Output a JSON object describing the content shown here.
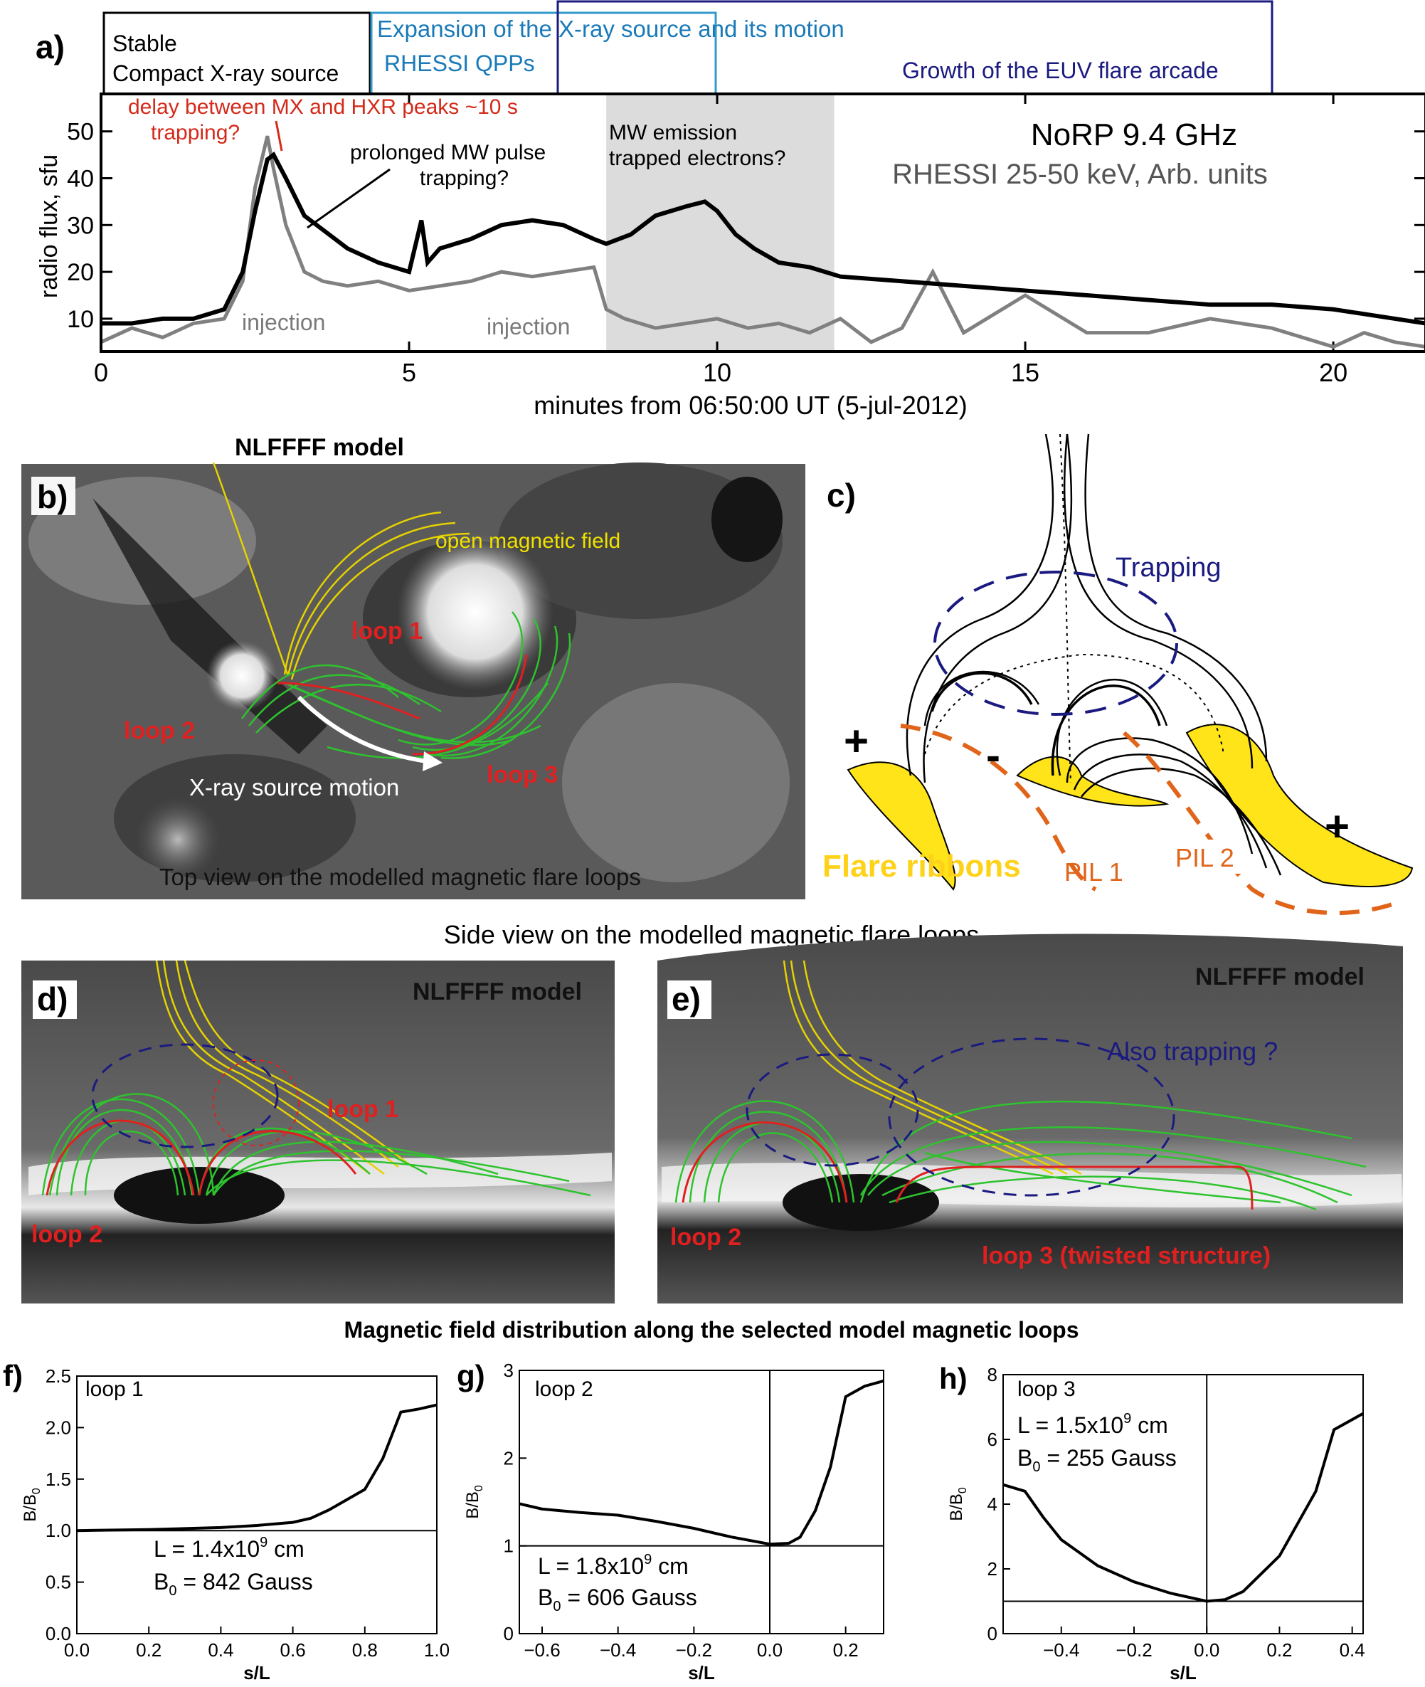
{
  "figure": {
    "panel_labels": {
      "a": "a)",
      "b": "b)",
      "c": "c)",
      "d": "d)",
      "e": "e)",
      "f": "f)",
      "g": "g)",
      "h": "h)"
    },
    "header": {
      "stable_1": "Stable",
      "stable_2": "Compact X-ray source",
      "expansion": "Expansion of the X-ray source and its motion",
      "qpp": "RHESSI QPPs",
      "growth": "Growth of the EUV flare arcade"
    },
    "nlfff_b": "NLFFFF model",
    "side_view_title": "Side view on the modelled magnetic flare loops",
    "bottom_title": "Magnetic field distribution along the selected model magnetic loops"
  },
  "panel_a": {
    "annotations": {
      "delay": "delay between MX and HXR peaks ~10 s",
      "trapping1": "trapping?",
      "prolonged_1": "prolonged MW pulse",
      "prolonged_2": "trapping?",
      "mw_1": "MW emission",
      "mw_2": "trapped electrons?",
      "injection1": "injection",
      "injection2": "injection",
      "legend_1": "NoRP 9.4 GHz",
      "legend_2": "RHESSI 25-50 keV, Arb. units"
    }
  },
  "panel_b": {
    "open_field": "open magnetic field",
    "loop1": "loop 1",
    "loop2": "loop 2",
    "loop3": "loop 3",
    "motion": "X-ray source motion",
    "caption": "Top view on the modelled magnetic flare loops"
  },
  "panel_c": {
    "trapping": "Trapping",
    "plus1": "+",
    "minus": "-",
    "plus2": "+",
    "ribbons": "Flare ribbons",
    "pil1": "PIL 1",
    "pil2": "PIL 2"
  },
  "panel_d": {
    "model": "NLFFFF model",
    "loop1": "loop 1",
    "loop2": "loop 2"
  },
  "panel_e": {
    "model": "NLFFFF model",
    "trapping": "Also trapping ?",
    "loop2": "loop 2",
    "loop3": "loop 3 (twisted structure)"
  },
  "panel_f": {
    "loop": "loop 1",
    "L_text": "L = 1.4x10",
    "L_exp": "9",
    "L_unit": " cm",
    "B0_text": "B",
    "B0_sub": "0",
    "B0_value": " = 842 Gauss"
  },
  "panel_g": {
    "loop": "loop 2",
    "L_text": "L = 1.8x10",
    "L_exp": "9",
    "L_unit": " cm",
    "B0_text": "B",
    "B0_sub": "0",
    "B0_value": " = 606 Gauss"
  },
  "panel_h": {
    "loop": "loop 3",
    "L_text": "L = 1.5x10",
    "L_exp": "9",
    "L_unit": " cm",
    "B0_text": "B",
    "B0_sub": "0",
    "B0_value": " = 255 Gauss"
  },
  "chart_data": [
    {
      "panel": "a",
      "type": "line",
      "xlabel": "minutes from 06:50:00 UT (5-jul-2012)",
      "ylabel": "radio flux, sfu",
      "xlim": [
        0,
        21.5
      ],
      "ylim": [
        3,
        58
      ],
      "xticks": [
        0,
        5,
        10,
        15,
        20
      ],
      "yticks": [
        10,
        20,
        30,
        40,
        50
      ],
      "shaded_interval": [
        8.2,
        11.9
      ],
      "series": [
        {
          "name": "NoRP 9.4 GHz",
          "color": "#000000",
          "x": [
            0,
            0.5,
            1.0,
            1.5,
            2.0,
            2.3,
            2.5,
            2.7,
            2.8,
            3.0,
            3.3,
            3.6,
            4.0,
            4.5,
            5.0,
            5.2,
            5.3,
            5.5,
            6.0,
            6.5,
            7.0,
            7.5,
            8.0,
            8.2,
            8.6,
            9.0,
            9.5,
            9.8,
            10.0,
            10.3,
            10.6,
            11.0,
            11.5,
            12.0,
            13.0,
            14.0,
            15.0,
            16.0,
            17.0,
            18.0,
            19.0,
            20.0,
            20.5,
            21.0,
            21.5
          ],
          "y": [
            9,
            9,
            10,
            10,
            12,
            20,
            33,
            44,
            45,
            40,
            32,
            29,
            25,
            22,
            20,
            31,
            22,
            25,
            27,
            30,
            31,
            30,
            27,
            26,
            28,
            32,
            34,
            35,
            33,
            28,
            25,
            22,
            21,
            19,
            18,
            17,
            16,
            15,
            14,
            13,
            13,
            12,
            11,
            10,
            9
          ]
        },
        {
          "name": "RHESSI 25-50 keV, Arb. units",
          "color": "#808080",
          "x": [
            0,
            0.5,
            1.0,
            1.5,
            2.0,
            2.3,
            2.5,
            2.7,
            2.8,
            3.0,
            3.3,
            3.6,
            4.0,
            4.5,
            5.0,
            5.5,
            6.0,
            6.5,
            7.0,
            7.5,
            8.0,
            8.2,
            8.5,
            9.0,
            9.5,
            10.0,
            10.5,
            11.0,
            11.5,
            12.0,
            12.5,
            13.0,
            13.5,
            14.0,
            15.0,
            16.0,
            17.0,
            18.0,
            19.0,
            20.0,
            20.5,
            21.0,
            21.5
          ],
          "y": [
            5,
            8,
            6,
            9,
            10,
            18,
            38,
            49,
            42,
            30,
            20,
            18,
            17,
            18,
            16,
            17,
            18,
            20,
            19,
            20,
            21,
            12,
            10,
            8,
            9,
            10,
            8,
            9,
            7,
            10,
            5,
            8,
            20,
            7,
            15,
            7,
            7,
            10,
            8,
            4,
            7,
            5,
            4
          ]
        }
      ]
    },
    {
      "panel": "f",
      "type": "line",
      "xlabel": "s/L",
      "ylabel": "B/B0",
      "xlim": [
        0,
        1.0
      ],
      "ylim": [
        0,
        2.5
      ],
      "reference_y": 1.0,
      "xticks": [
        0.0,
        0.2,
        0.4,
        0.6,
        0.8,
        1.0
      ],
      "yticks": [
        0.0,
        0.5,
        1.0,
        1.5,
        2.0,
        2.5
      ],
      "series": [
        {
          "name": "loop 1",
          "x": [
            0,
            0.2,
            0.4,
            0.5,
            0.6,
            0.65,
            0.7,
            0.75,
            0.8,
            0.85,
            0.9,
            0.95,
            1.0
          ],
          "y": [
            1.0,
            1.01,
            1.03,
            1.05,
            1.08,
            1.12,
            1.2,
            1.3,
            1.4,
            1.7,
            2.15,
            2.18,
            2.22
          ]
        }
      ]
    },
    {
      "panel": "g",
      "type": "line",
      "xlabel": "s/L",
      "ylabel": "B/B0",
      "xlim": [
        -0.66,
        0.3
      ],
      "ylim": [
        0,
        3
      ],
      "reference_y": 1.0,
      "reference_x": 0.0,
      "xticks": [
        -0.6,
        -0.4,
        -0.2,
        0.0,
        0.2
      ],
      "yticks": [
        0,
        1,
        2,
        3
      ],
      "series": [
        {
          "name": "loop 2",
          "x": [
            -0.66,
            -0.6,
            -0.5,
            -0.4,
            -0.3,
            -0.2,
            -0.1,
            0.0,
            0.05,
            0.08,
            0.12,
            0.16,
            0.2,
            0.25,
            0.3
          ],
          "y": [
            1.48,
            1.42,
            1.38,
            1.35,
            1.28,
            1.2,
            1.1,
            1.02,
            1.03,
            1.1,
            1.4,
            1.9,
            2.7,
            2.82,
            2.88
          ]
        }
      ]
    },
    {
      "panel": "h",
      "type": "line",
      "xlabel": "s/L",
      "ylabel": "B/B0",
      "xlim": [
        -0.56,
        0.43
      ],
      "ylim": [
        0,
        8
      ],
      "reference_y": 1.0,
      "reference_x": 0.0,
      "xticks": [
        -0.4,
        -0.2,
        0.0,
        0.2,
        0.4
      ],
      "yticks": [
        0,
        2,
        4,
        6,
        8
      ],
      "series": [
        {
          "name": "loop 3",
          "x": [
            -0.56,
            -0.5,
            -0.45,
            -0.4,
            -0.3,
            -0.2,
            -0.1,
            0.0,
            0.05,
            0.1,
            0.2,
            0.3,
            0.35,
            0.43
          ],
          "y": [
            4.6,
            4.4,
            3.6,
            2.9,
            2.1,
            1.6,
            1.25,
            1.0,
            1.05,
            1.3,
            2.4,
            4.4,
            6.3,
            6.8
          ]
        }
      ]
    }
  ]
}
